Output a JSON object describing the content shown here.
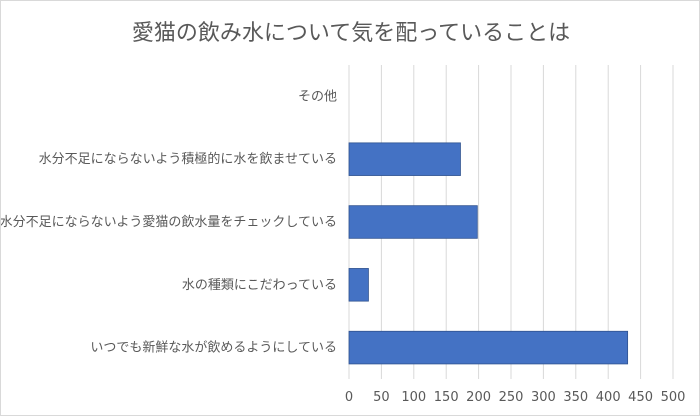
{
  "chart_data": {
    "type": "bar",
    "orientation": "horizontal",
    "title": "愛猫の飲み水について気を配っていることは",
    "categories": [
      "その他",
      "水分不足にならないよう積極的に水を飲ませている",
      "水分不足にならないよう愛猫の飲水量をチェックしている",
      "水の種類にこだわっている",
      "いつでも新鮮な水が飲めるようにしている"
    ],
    "values": [
      0,
      172,
      198,
      30,
      430
    ],
    "xlim": [
      0,
      500
    ],
    "xticks": [
      0,
      50,
      100,
      150,
      200,
      250,
      300,
      350,
      400,
      450,
      500
    ],
    "xlabel": "",
    "ylabel": "",
    "grid": "vertical",
    "bar_color": "#4472c4",
    "grid_color": "#d9d9d9",
    "text_color": "#595959"
  }
}
